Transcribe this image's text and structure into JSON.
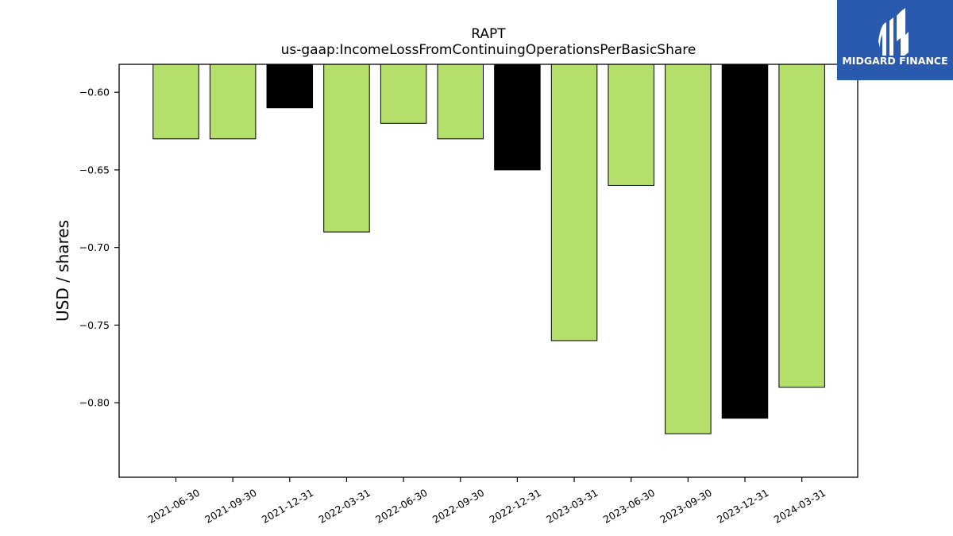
{
  "chart_data": {
    "type": "bar",
    "title": "RAPT",
    "subtitle": "us-gaap:IncomeLossFromContinuingOperationsPerBasicShare",
    "xlabel": "",
    "ylabel": "USD / shares",
    "categories": [
      "2021-06-30",
      "2021-09-30",
      "2021-12-31",
      "2022-03-31",
      "2022-06-30",
      "2022-09-30",
      "2022-12-31",
      "2023-03-31",
      "2023-06-30",
      "2023-09-30",
      "2023-12-31",
      "2024-03-31"
    ],
    "values": [
      -0.63,
      -0.63,
      -0.61,
      -0.69,
      -0.62,
      -0.63,
      -0.65,
      -0.76,
      -0.66,
      -0.82,
      -0.81,
      -0.79
    ],
    "bar_colors": [
      "#b3df6a",
      "#b3df6a",
      "#000000",
      "#b3df6a",
      "#b3df6a",
      "#b3df6a",
      "#000000",
      "#b3df6a",
      "#b3df6a",
      "#b3df6a",
      "#000000",
      "#b3df6a"
    ],
    "ylim": [
      -0.848,
      -0.582
    ],
    "yticks": [
      -0.6,
      -0.65,
      -0.7,
      -0.75,
      -0.8
    ],
    "ytick_labels": [
      "−0.60",
      "−0.65",
      "−0.70",
      "−0.75",
      "−0.80"
    ],
    "grid": false,
    "legend": "none"
  },
  "logo": {
    "text": "MIDGARD FINANCE",
    "background": "#2a5aad"
  }
}
